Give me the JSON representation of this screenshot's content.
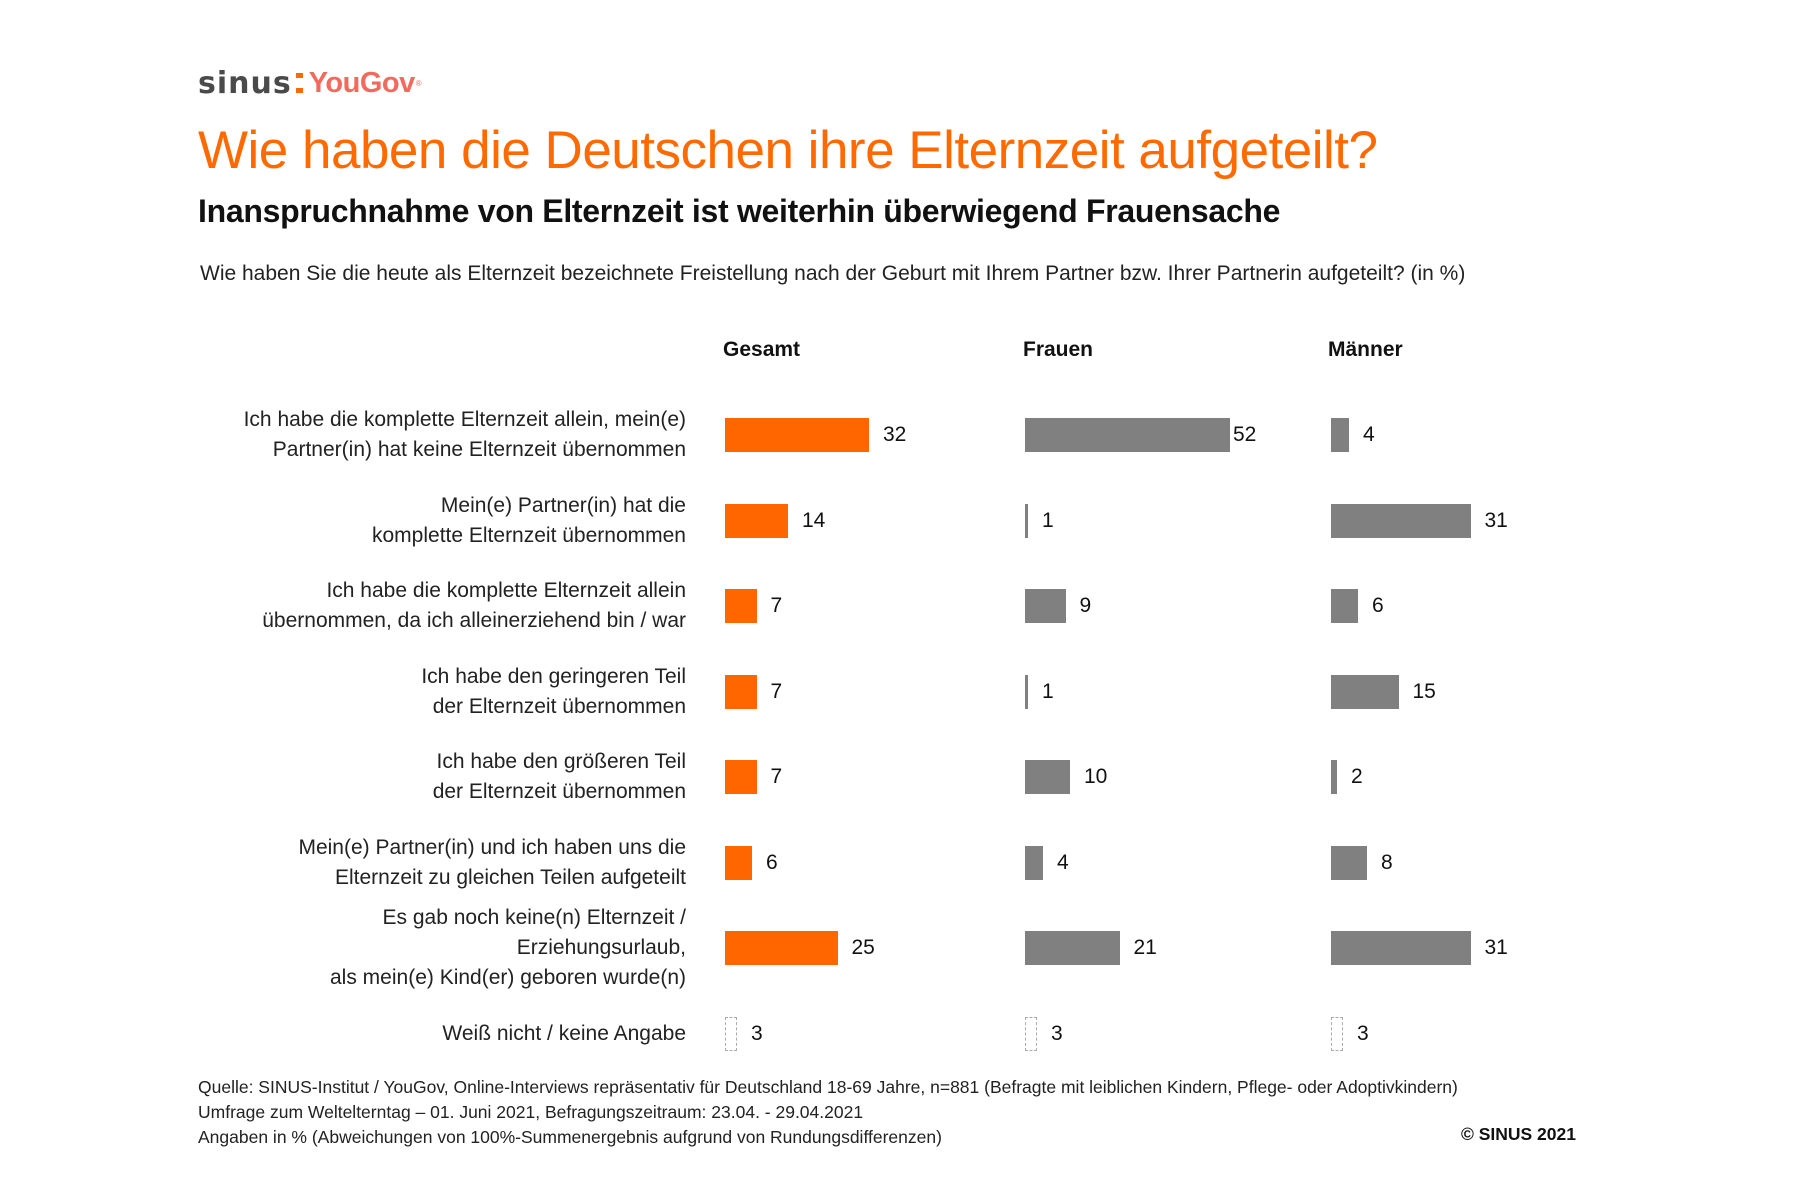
{
  "logo": {
    "left": "sinus",
    "right": "YouGov",
    "reg_mark": "®"
  },
  "title": "Wie haben die Deutschen ihre Elternzeit aufgeteilt?",
  "subtitle": "Inanspruchnahme von Elternzeit ist weiterhin überwiegend Frauensache",
  "question": "Wie haben Sie die heute als Elternzeit bezeichnete Freistellung nach der Geburt mit Ihrem Partner bzw. Ihrer Partnerin aufgeteilt? (in %)",
  "colors": {
    "accent": "#FF6600",
    "gray": "#808080",
    "dashed": "#AAAAAA"
  },
  "chart_data": {
    "type": "bar",
    "orientation": "horizontal",
    "title": "Wie haben die Deutschen ihre Elternzeit aufgeteilt?",
    "unit": "%",
    "categories": [
      [
        "Ich habe die komplette Elternzeit allein, mein(e)",
        "Partner(in) hat keine Elternzeit übernommen"
      ],
      [
        "Mein(e) Partner(in) hat die",
        "komplette Elternzeit übernommen"
      ],
      [
        "Ich habe die komplette Elternzeit allein",
        "übernommen, da ich alleinerziehend bin / war"
      ],
      [
        "Ich habe den geringeren Teil",
        "der Elternzeit übernommen"
      ],
      [
        "Ich habe den größeren Teil",
        "der Elternzeit übernommen"
      ],
      [
        "Mein(e) Partner(in) und ich haben uns die",
        "Elternzeit zu gleichen Teilen aufgeteilt"
      ],
      [
        "Es gab noch keine(n) Elternzeit /",
        "Erziehungsurlaub,",
        "als mein(e) Kind(er) geboren wurde(n)"
      ],
      [
        "Weiß nicht / keine Angabe"
      ]
    ],
    "series": [
      {
        "name": "Gesamt",
        "color": "#FF6600",
        "values": [
          32,
          14,
          7,
          7,
          7,
          6,
          25,
          3
        ]
      },
      {
        "name": "Frauen",
        "color": "#808080",
        "values": [
          52,
          1,
          9,
          1,
          10,
          4,
          21,
          3
        ]
      },
      {
        "name": "Männer",
        "color": "#808080",
        "values": [
          4,
          31,
          6,
          15,
          2,
          8,
          31,
          3
        ]
      }
    ],
    "last_row_style": "dashed-outline",
    "xlabel": "",
    "ylabel": "",
    "grid": false,
    "legend": "column-headers-top"
  },
  "footer": {
    "source": "Quelle: SINUS-Institut / YouGov, Online-Interviews repräsentativ für Deutschland 18-69 Jahre, n=881 (Befragte mit leiblichen Kindern, Pflege- oder Adoptivkindern)",
    "survey": "Umfrage zum Weltelterntag – 01. Juni 2021, Befragungszeitraum: 23.04. - 29.04.2021",
    "note": "Angaben in % (Abweichungen von 100%-Summenergebnis aufgrund von Rundungsdifferenzen)",
    "copyright": "© SINUS 2021"
  }
}
